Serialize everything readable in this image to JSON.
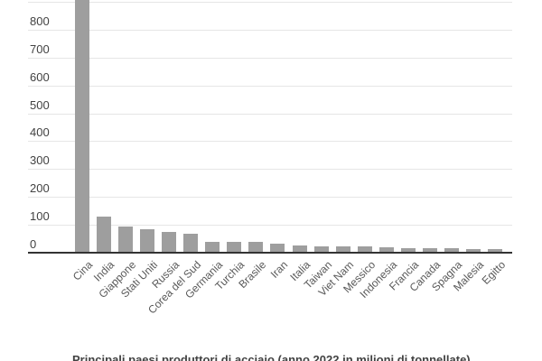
{
  "chart_data": {
    "type": "bar",
    "title": "Principali paesi produttori di acciaio (anno 2022 in milioni di tonnellate)",
    "categories": [
      "Cina",
      "India",
      "Giappone",
      "Stati Uniti",
      "Russia",
      "Corea del Sud",
      "Germania",
      "Turchia",
      "Brasile",
      "Iran",
      "Italia",
      "Taiwan",
      "Viet Nam",
      "Messico",
      "Indonesia",
      "Francia",
      "Canada",
      "Spagna",
      "Malesia",
      "Egitto"
    ],
    "values": [
      1013,
      125.4,
      89.2,
      80.5,
      71.5,
      65.9,
      36.8,
      35.1,
      34.0,
      30.6,
      21.6,
      20.7,
      20.0,
      18.2,
      15.6,
      12.1,
      12.0,
      11.5,
      10.0,
      9.8
    ],
    "xlabel": "",
    "ylabel": "",
    "yticks": [
      0,
      100,
      200,
      300,
      400,
      500,
      600,
      700,
      800
    ],
    "gridline_max": 900,
    "ylim_visible": [
      0,
      905
    ],
    "grid": true,
    "legend": "none",
    "note_top_bar_clipped": "Cina bar extends past the top edge of the image",
    "colors": {
      "bar": "#9e9e9e",
      "gridline": "#e6e6e6",
      "axis_line": "#333333",
      "y_tick_text": "#424242",
      "x_tick_text": "#595959",
      "caption_text": "#424242",
      "background": "#ffffff"
    }
  }
}
